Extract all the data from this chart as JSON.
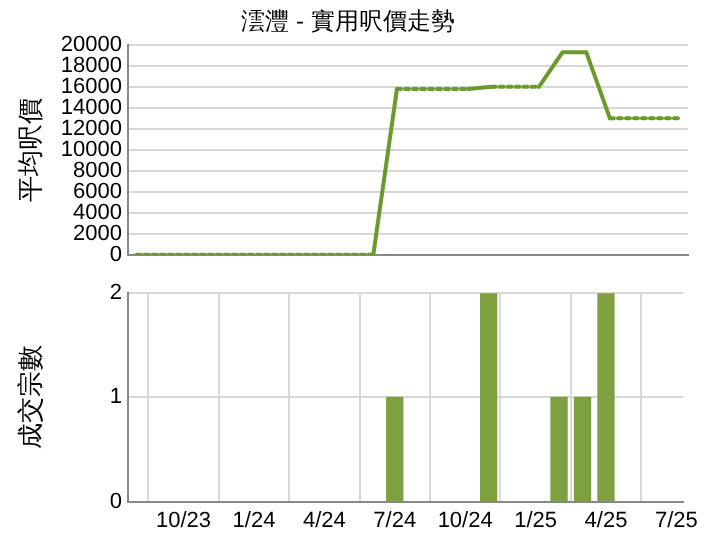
{
  "chart_data": [
    {
      "type": "line",
      "title": "澐灃 - 實用呎價走勢",
      "ylabel": "平均呎價",
      "xlim": [
        "2023-07-20",
        "2025-07-10"
      ],
      "xticks": [
        {
          "value": "2023-10",
          "label": null
        },
        {
          "value": "2024-01",
          "label": null
        },
        {
          "value": "2024-04",
          "label": null
        },
        {
          "value": "2024-07",
          "label": null
        },
        {
          "value": "2024-10",
          "label": null
        },
        {
          "value": "2025-01",
          "label": null
        },
        {
          "value": "2025-04",
          "label": null
        },
        {
          "value": "2025-07",
          "label": null
        }
      ],
      "ylim": [
        0,
        20000
      ],
      "yticks": [
        0,
        2000,
        4000,
        6000,
        8000,
        10000,
        12000,
        14000,
        16000,
        18000,
        20000
      ],
      "grid": true,
      "tick_labels": "y",
      "series": [
        {
          "color": "#6b9a2c",
          "line_style": "solid",
          "x": [
            "2024-06",
            "2024-07"
          ],
          "values": [
            0,
            15800
          ]
        },
        {
          "color": "#6b9a2c",
          "line_style": "solid",
          "x": [
            "2024-10",
            "2024-11"
          ],
          "values": [
            15800,
            16000
          ]
        },
        {
          "color": "#6b9a2c",
          "line_style": "solid",
          "x": [
            "2025-01",
            "2025-02",
            "2025-03",
            "2025-04"
          ],
          "values": [
            16000,
            19300,
            19300,
            13000
          ]
        },
        {
          "color": "#6b9a2c",
          "line_style": "dotted",
          "x": [
            "2023-08",
            "2023-09",
            "2023-10",
            "2023-11",
            "2023-12",
            "2024-01",
            "2024-02",
            "2024-03",
            "2024-04",
            "2024-05",
            "2024-06"
          ],
          "values": [
            0,
            0,
            0,
            0,
            0,
            0,
            0,
            0,
            0,
            0,
            0
          ]
        },
        {
          "color": "#6b9a2c",
          "line_style": "dotted",
          "x": [
            "2024-07",
            "2024-08",
            "2024-09",
            "2024-10"
          ],
          "values": [
            15800,
            15800,
            15800,
            15800
          ]
        },
        {
          "color": "#6b9a2c",
          "line_style": "dotted",
          "x": [
            "2024-11",
            "2024-12",
            "2025-01"
          ],
          "values": [
            16000,
            16000,
            16000
          ]
        },
        {
          "color": "#6b9a2c",
          "line_style": "dotted",
          "x": [
            "2025-04",
            "2025-05",
            "2025-06",
            "2025-07"
          ],
          "values": [
            13000,
            13000,
            13000,
            13000
          ]
        }
      ]
    },
    {
      "type": "bar",
      "ylabel": "成交宗數",
      "xlim": [
        "2023-07-20",
        "2025-07-10"
      ],
      "xticks": [
        {
          "value": "2023-10",
          "label": "10/23"
        },
        {
          "value": "2024-01",
          "label": "1/24"
        },
        {
          "value": "2024-04",
          "label": "4/24"
        },
        {
          "value": "2024-07",
          "label": "7/24"
        },
        {
          "value": "2024-10",
          "label": "10/24"
        },
        {
          "value": "2025-01",
          "label": "1/25"
        },
        {
          "value": "2025-04",
          "label": "4/25"
        },
        {
          "value": "2025-07",
          "label": "7/25"
        }
      ],
      "ylim": [
        0,
        2
      ],
      "yticks": [
        0,
        1,
        2
      ],
      "grid": true,
      "x": [
        "2024-07",
        "2024-11",
        "2025-02",
        "2025-03",
        "2025-04"
      ],
      "values": [
        1,
        2,
        1,
        1,
        2
      ],
      "color": "#7fa040"
    }
  ]
}
